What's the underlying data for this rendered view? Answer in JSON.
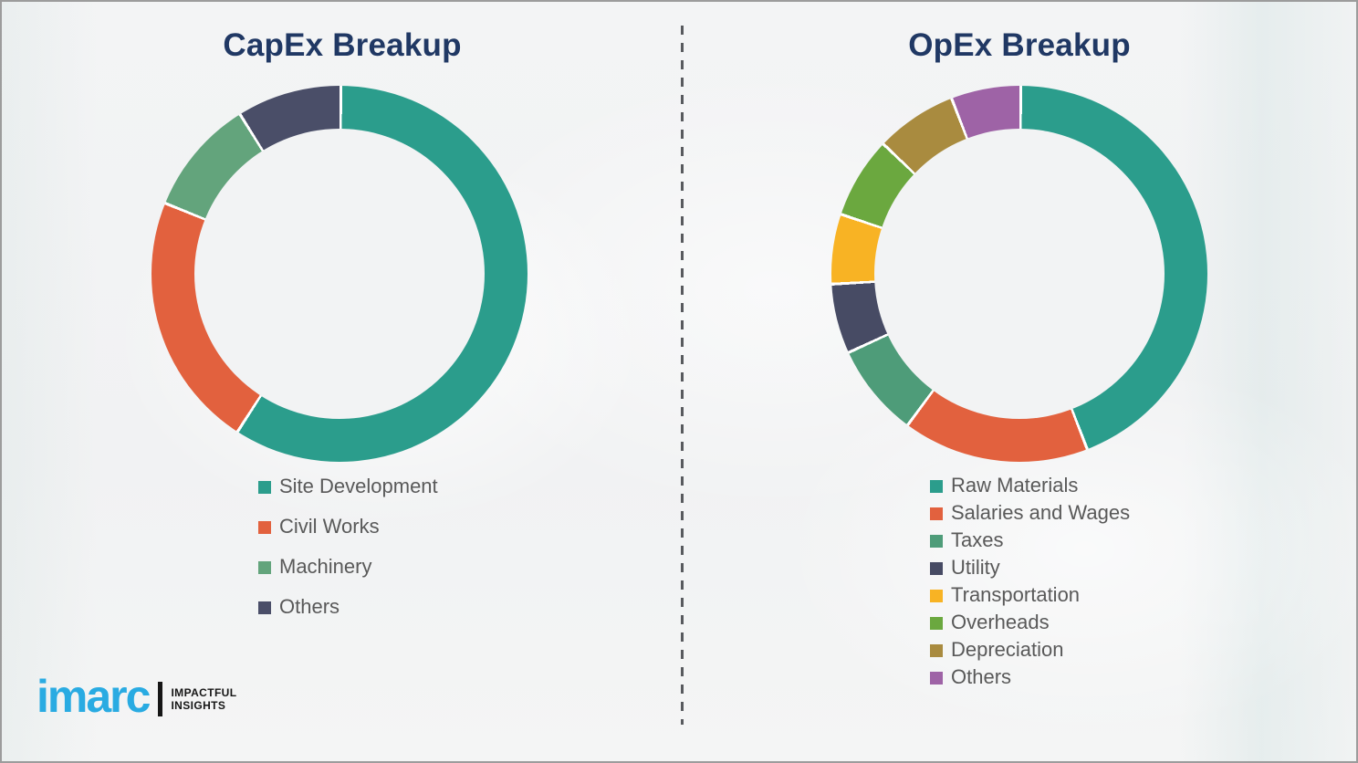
{
  "chart_data": [
    {
      "type": "donut",
      "title": "CapEx Breakup",
      "categories": [
        "Site Development",
        "Civil Works",
        "Machinery",
        "Others"
      ],
      "values": [
        59,
        22,
        10,
        9
      ],
      "values_note": "percent shares estimated from arc angles; no data labels shown",
      "colors": [
        "#2B9D8C",
        "#E2613E",
        "#63A47C",
        "#4A4E68"
      ],
      "start_angle_deg": 0,
      "direction": "clockwise",
      "legend_position": "below-left",
      "hole_ratio": 0.77
    },
    {
      "type": "donut",
      "title": "OpEx Breakup",
      "categories": [
        "Raw Materials",
        "Salaries and Wages",
        "Taxes",
        "Utility",
        "Transportation",
        "Overheads",
        "Depreciation",
        "Others"
      ],
      "values": [
        44,
        16,
        8,
        6,
        6,
        7,
        7,
        6
      ],
      "values_note": "percent shares estimated from arc angles; no data labels shown",
      "colors": [
        "#2B9D8C",
        "#E2613E",
        "#4E9C79",
        "#474B64",
        "#F8B324",
        "#6BA83F",
        "#A98B3F",
        "#9E63A6"
      ],
      "start_angle_deg": 0,
      "direction": "clockwise",
      "legend_position": "below-left",
      "hole_ratio": 0.77
    }
  ],
  "branding": {
    "logo_text": "imarc",
    "tagline_line1": "IMPACTFUL",
    "tagline_line2": "INSIGHTS",
    "logo_color": "#29ABE2"
  },
  "theme": {
    "title_color": "#203864",
    "legend_text_color": "#595959",
    "background_color": "#F2F3F4",
    "divider_color": "#585A5E"
  }
}
